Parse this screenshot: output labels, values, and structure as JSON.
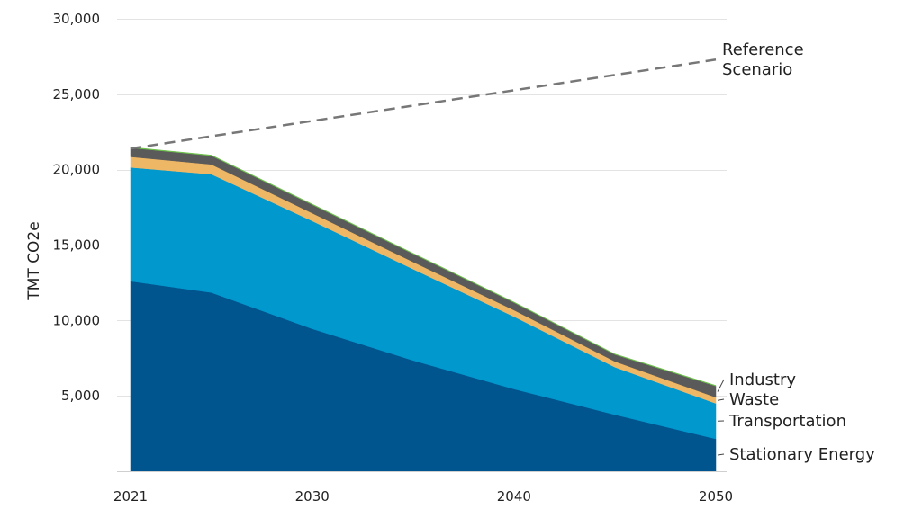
{
  "chart_data": {
    "type": "area",
    "stacked": true,
    "ylabel": "TMT CO2e",
    "xlabel": "",
    "ylim": [
      0,
      30000
    ],
    "xlim": [
      2021,
      2050
    ],
    "y_ticks": [
      5000,
      10000,
      15000,
      20000,
      25000,
      30000
    ],
    "y_tick_labels": [
      "5,000",
      "10,000",
      "15,000",
      "20,000",
      "25,000",
      "30,000"
    ],
    "x_ticks": [
      2021,
      2030,
      2040,
      2050
    ],
    "x_tick_labels": [
      "2021",
      "2030",
      "2040",
      "2050"
    ],
    "grid": "horizontal",
    "x": [
      2021,
      2025,
      2030,
      2035,
      2040,
      2045,
      2050
    ],
    "series": [
      {
        "name": "Stationary Energy",
        "color": "#00558f",
        "values": [
          12600,
          11850,
          9450,
          7350,
          5450,
          3750,
          2150
        ]
      },
      {
        "name": "Transportation",
        "color": "#0098cd",
        "values": [
          7550,
          7850,
          7150,
          6050,
          4800,
          3150,
          2350
        ]
      },
      {
        "name": "Waste",
        "color": "#eeb766",
        "values": [
          700,
          650,
          520,
          480,
          430,
          380,
          400
        ]
      },
      {
        "name": "Industry",
        "color": "#5a5a5a",
        "values": [
          600,
          580,
          560,
          540,
          500,
          460,
          750
        ]
      },
      {
        "name": "",
        "color": "#6cc24a",
        "values": [
          40,
          40,
          40,
          40,
          40,
          40,
          40
        ]
      }
    ],
    "reference": {
      "label_line1": "Reference",
      "label_line2": "Scenario",
      "x": [
        2021,
        2050
      ],
      "values": [
        21400,
        27300
      ],
      "color": "#777777"
    }
  }
}
